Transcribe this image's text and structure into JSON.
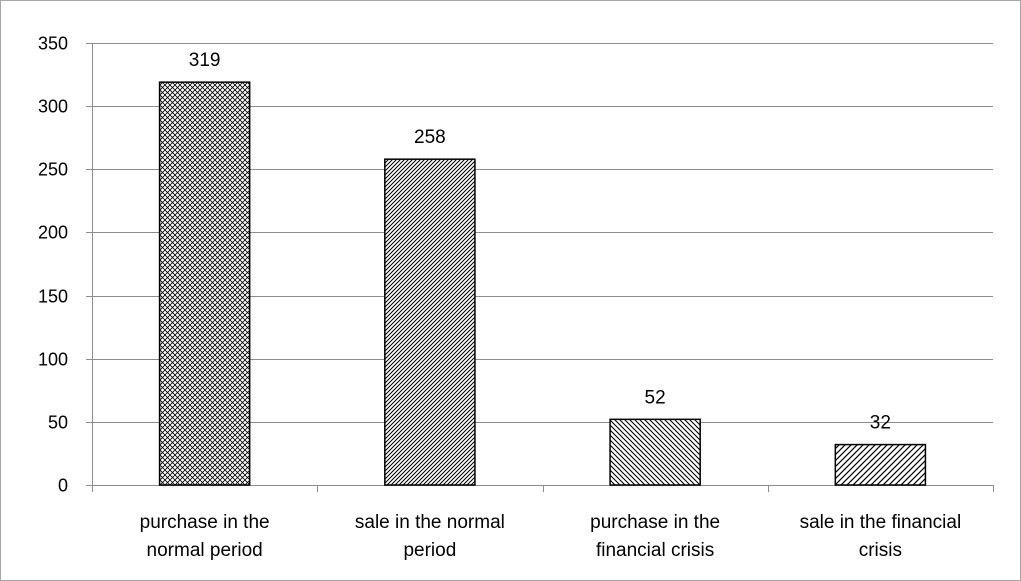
{
  "chart_data": {
    "type": "bar",
    "title": "",
    "xlabel": "",
    "ylabel": "",
    "categories": [
      [
        "purchase in the",
        "normal period"
      ],
      [
        "sale in the normal",
        "period"
      ],
      [
        "purchase in the",
        "financial crisis"
      ],
      [
        "sale in the financial",
        "crisis"
      ]
    ],
    "values": [
      319,
      258,
      52,
      32
    ],
    "data_labels": [
      "319",
      "258",
      "52",
      "32"
    ],
    "ylim": [
      0,
      350
    ],
    "yticks": [
      0,
      50,
      100,
      150,
      200,
      250,
      300,
      350
    ],
    "grid": true,
    "legend": "none",
    "bar_patterns": [
      "crosshatch-fine",
      "diagonal-dense",
      "diagonal-backslash",
      "diagonal-slash"
    ],
    "colors": {
      "gridline": "#8c8c8c",
      "bar_stroke": "#000000",
      "bar_fill": "#ffffff",
      "frame": "#a6a6a6"
    }
  }
}
